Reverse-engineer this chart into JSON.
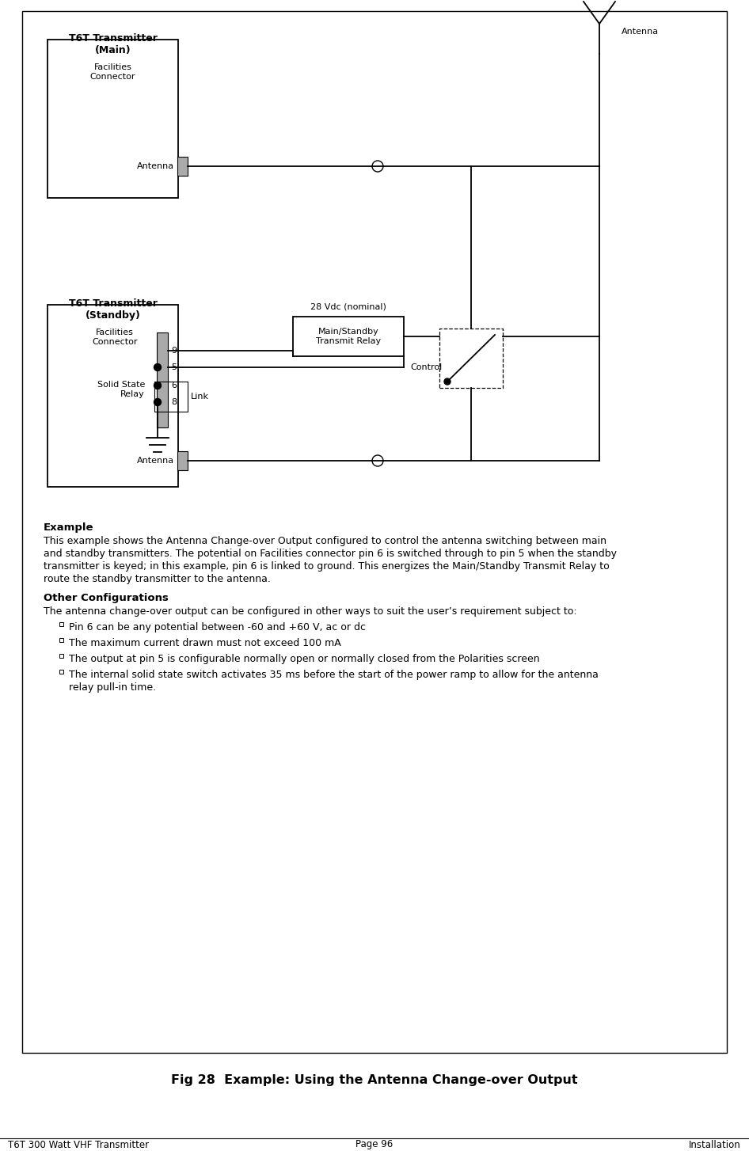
{
  "page_title_left": "T6T 300 Watt VHF Transmitter",
  "page_title_center": "Page 96",
  "page_title_right": "Installation",
  "fig_caption": "Fig 28  Example: Using the Antenna Change-over Output",
  "main_box_label": "T6T Transmitter\n(Main)",
  "standby_box_label": "T6T Transmitter\n(Standby)",
  "facilities_connector_label": "Facilities\nConnector",
  "antenna_label": "Antenna",
  "antenna_symbol_label": "Antenna",
  "vdc_label": "28 Vdc (nominal)",
  "relay_box_label": "Main/Standby\nTransmit Relay",
  "control_label": "Control",
  "solid_state_relay_label": "Solid State\nRelay",
  "link_label": "Link",
  "example_title": "Example",
  "example_text": "This example shows the Antenna Change-over Output configured to control the antenna switching between main\nand standby transmitters. The potential on Facilities connector pin 6 is switched through to pin 5 when the standby\ntransmitter is keyed; in this example, pin 6 is linked to ground. This energizes the Main/Standby Transmit Relay to\nroute the standby transmitter to the antenna.",
  "other_config_title": "Other Configurations",
  "other_config_intro": "The antenna change-over output can be configured in other ways to suit the user’s requirement subject to:",
  "bullet_items": [
    "Pin 6 can be any potential between -60 and +60 V, ac or dc",
    "The maximum current drawn must not exceed 100 mA",
    "The output at pin 5 is configurable normally open or normally closed from the Polarities screen",
    "The internal solid state switch activates 35 ms before the start of the power ramp to allow for the antenna\nrelay pull-in time."
  ],
  "bg_color": "#ffffff",
  "connector_fill": "#aaaaaa"
}
